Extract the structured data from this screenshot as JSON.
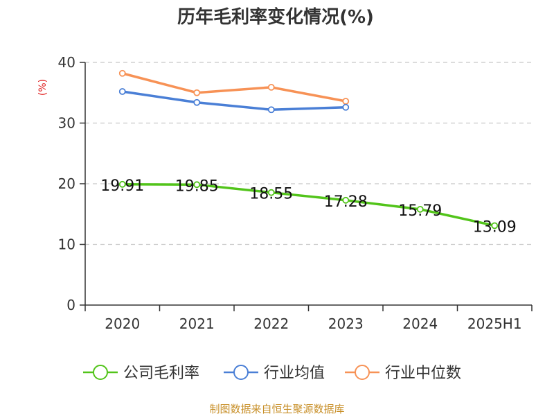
{
  "chart_data": {
    "type": "line",
    "title": "历年毛利率变化情况(%)",
    "ylabel": "(%)",
    "xlabel": "",
    "categories": [
      "2020",
      "2021",
      "2022",
      "2023",
      "2024",
      "2025H1"
    ],
    "ylim": [
      0,
      40
    ],
    "yticks": [
      0,
      10,
      20,
      30,
      40
    ],
    "grid": true,
    "legend_position": "bottom",
    "series": [
      {
        "name": "公司毛利率",
        "color": "#52c41a",
        "values": [
          19.91,
          19.85,
          18.55,
          17.28,
          15.79,
          13.09
        ],
        "labels": [
          "19.91",
          "19.85",
          "18.55",
          "17.28",
          "15.79",
          "13.09"
        ]
      },
      {
        "name": "行业均值",
        "color": "#4a7fd6",
        "values": [
          35.2,
          33.4,
          32.2,
          32.6,
          null,
          null
        ]
      },
      {
        "name": "行业中位数",
        "color": "#f79256",
        "values": [
          38.2,
          35.0,
          35.9,
          33.6,
          null,
          null
        ]
      }
    ]
  },
  "source": "制图数据来自恒生聚源数据库",
  "colors": {
    "title": "#333333",
    "ylabel": "#e02020",
    "source": "#c8902a",
    "axis": "#333333",
    "grid": "#c8c8c8"
  }
}
